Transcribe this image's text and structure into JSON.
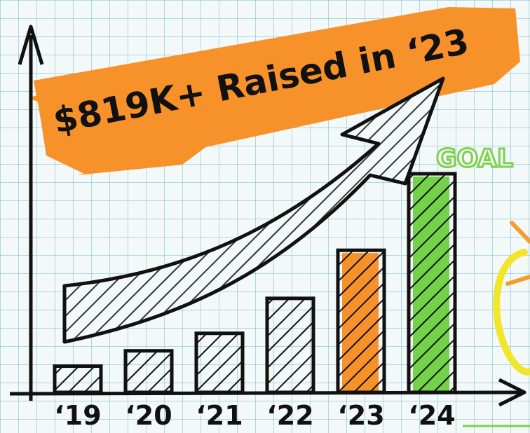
{
  "headline": "$819K+ Raised in ‘23",
  "goal_label": "GOAL",
  "colors": {
    "banner": "#f7922a",
    "highlight_bar": "#f7922a",
    "goal_bar": "#74d14a",
    "goal_text": "#7ed14c",
    "ink": "#111111",
    "grid": "#8cc8d6",
    "accent_yellow": "#f2e62a"
  },
  "icons": {
    "trend_arrow": "growth-arrow-icon"
  },
  "chart_data": {
    "type": "bar",
    "title": "$819K+ Raised in ‘23",
    "categories": [
      "‘19",
      "‘20",
      "‘21",
      "‘22",
      "‘23",
      "‘24"
    ],
    "values": [
      12,
      19,
      27,
      43,
      65,
      100
    ],
    "value_scale": "relative (no axis ticks printed; values estimated as % of tallest bar)",
    "highlight": {
      "‘23": "#f7922a",
      "‘24": "#74d14a"
    },
    "annotations": [
      "GOAL"
    ],
    "xlabel": "",
    "ylabel": "",
    "ylim": [
      0,
      100
    ],
    "grid": true
  }
}
